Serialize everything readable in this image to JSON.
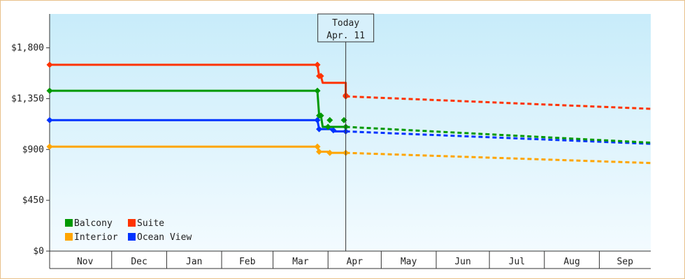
{
  "chart_data": {
    "type": "line",
    "title": "",
    "xlabel": "",
    "ylabel": "",
    "ylim": [
      0,
      2100
    ],
    "y_ticks": [
      {
        "value": 0,
        "label": "$0"
      },
      {
        "value": 450,
        "label": "$450"
      },
      {
        "value": 900,
        "label": "$900"
      },
      {
        "value": 1350,
        "label": "$1,350"
      },
      {
        "value": 1800,
        "label": "$1,800"
      }
    ],
    "x_axis": {
      "start": "2023-10-27",
      "end": "2024-09-30",
      "months": [
        {
          "label": "Nov",
          "start": "2023-11-01",
          "end": "2023-12-01"
        },
        {
          "label": "Dec",
          "start": "2023-12-01",
          "end": "2024-01-01"
        },
        {
          "label": "Jan",
          "start": "2024-01-01",
          "end": "2024-02-01"
        },
        {
          "label": "Feb",
          "start": "2024-02-01",
          "end": "2024-03-01"
        },
        {
          "label": "Mar",
          "start": "2024-03-01",
          "end": "2024-04-01"
        },
        {
          "label": "Apr",
          "start": "2024-04-01",
          "end": "2024-05-01"
        },
        {
          "label": "May",
          "start": "2024-05-01",
          "end": "2024-06-01"
        },
        {
          "label": "Jun",
          "start": "2024-06-01",
          "end": "2024-07-01"
        },
        {
          "label": "Jul",
          "start": "2024-07-01",
          "end": "2024-08-01"
        },
        {
          "label": "Aug",
          "start": "2024-08-01",
          "end": "2024-09-01"
        },
        {
          "label": "Sep",
          "start": "2024-09-01",
          "end": "2024-09-30"
        }
      ]
    },
    "today": {
      "label_line1": "Today",
      "label_line2": "Apr. 11",
      "date": "2024-04-11"
    },
    "legend_placement": "bottom-left",
    "grid": false,
    "series": [
      {
        "name": "Suite",
        "color": "#ff3300",
        "history": [
          [
            "2023-10-27",
            1650
          ],
          [
            "2024-03-26",
            1650
          ],
          [
            "2024-03-27",
            1550
          ],
          [
            "2024-03-28",
            1550
          ],
          [
            "2024-03-29",
            1490
          ],
          [
            "2024-04-11",
            1490
          ],
          [
            "2024-04-11",
            1370
          ]
        ],
        "markers": [
          [
            "2023-10-27",
            1650
          ],
          [
            "2024-03-26",
            1650
          ],
          [
            "2024-03-27",
            1550
          ],
          [
            "2024-03-28",
            1550
          ],
          [
            "2024-04-11",
            1370
          ],
          [
            "2024-04-11",
            1380
          ]
        ],
        "forecast": [
          [
            "2024-04-11",
            1370
          ],
          [
            "2024-09-30",
            1260
          ]
        ]
      },
      {
        "name": "Balcony",
        "color": "#009900",
        "history": [
          [
            "2023-10-27",
            1420
          ],
          [
            "2024-03-26",
            1420
          ],
          [
            "2024-03-27",
            1200
          ],
          [
            "2024-03-28",
            1200
          ],
          [
            "2024-03-29",
            1100
          ],
          [
            "2024-04-11",
            1100
          ]
        ],
        "markers": [
          [
            "2023-10-27",
            1420
          ],
          [
            "2024-03-26",
            1420
          ],
          [
            "2024-03-27",
            1200
          ],
          [
            "2024-03-28",
            1200
          ],
          [
            "2024-04-01",
            1100
          ],
          [
            "2024-04-02",
            1160
          ],
          [
            "2024-04-10",
            1160
          ],
          [
            "2024-04-11",
            1100
          ]
        ],
        "forecast": [
          [
            "2024-04-11",
            1100
          ],
          [
            "2024-09-30",
            960
          ]
        ]
      },
      {
        "name": "Ocean View",
        "color": "#0033ff",
        "history": [
          [
            "2023-10-27",
            1160
          ],
          [
            "2024-03-26",
            1160
          ],
          [
            "2024-03-27",
            1080
          ],
          [
            "2024-04-04",
            1080
          ],
          [
            "2024-04-04",
            1060
          ],
          [
            "2024-04-11",
            1060
          ]
        ],
        "markers": [
          [
            "2023-10-27",
            1160
          ],
          [
            "2024-03-26",
            1160
          ],
          [
            "2024-03-27",
            1080
          ],
          [
            "2024-04-04",
            1070
          ],
          [
            "2024-04-11",
            1060
          ]
        ],
        "forecast": [
          [
            "2024-04-11",
            1060
          ],
          [
            "2024-09-30",
            950
          ]
        ]
      },
      {
        "name": "Interior",
        "color": "#ffa500",
        "history": [
          [
            "2023-10-27",
            925
          ],
          [
            "2024-03-26",
            925
          ],
          [
            "2024-03-27",
            880
          ],
          [
            "2024-04-01",
            880
          ],
          [
            "2024-04-02",
            870
          ],
          [
            "2024-04-11",
            870
          ]
        ],
        "markers": [
          [
            "2023-10-27",
            925
          ],
          [
            "2024-03-26",
            925
          ],
          [
            "2024-03-27",
            880
          ],
          [
            "2024-04-02",
            870
          ],
          [
            "2024-04-11",
            870
          ]
        ],
        "forecast": [
          [
            "2024-04-11",
            870
          ],
          [
            "2024-09-30",
            780
          ]
        ]
      }
    ],
    "legend": [
      {
        "name": "Balcony",
        "color": "#009900"
      },
      {
        "name": "Suite",
        "color": "#ff3300"
      },
      {
        "name": "Interior",
        "color": "#ffa500"
      },
      {
        "name": "Ocean View",
        "color": "#0033ff"
      }
    ]
  }
}
